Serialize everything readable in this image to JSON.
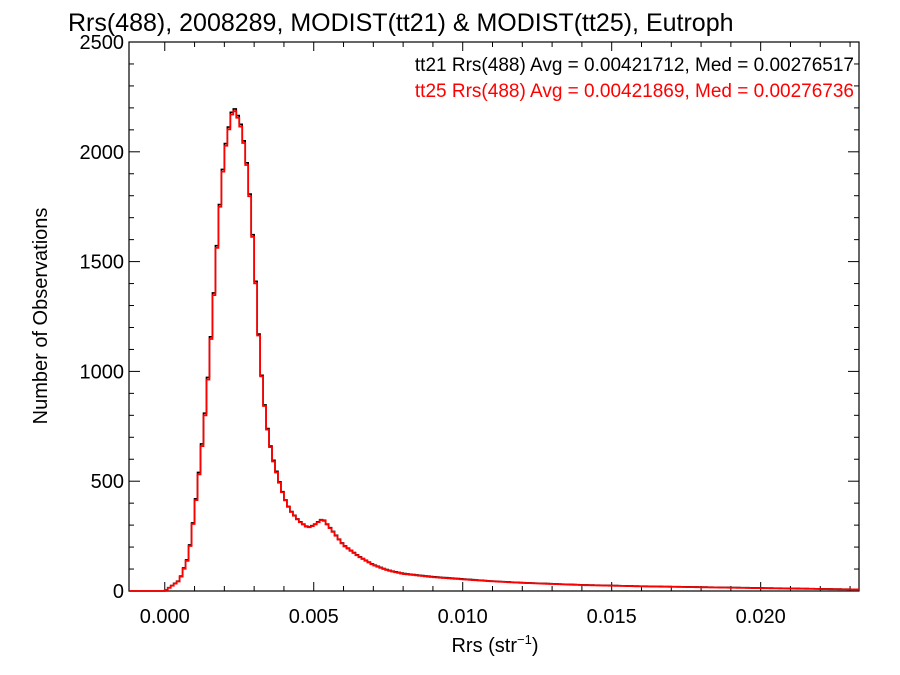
{
  "chart_data": {
    "type": "line",
    "title": "Rrs(488), 2008289, MODIST(tt21) & MODIST(tt25), Eutroph",
    "xlabel_base": "Rrs (str",
    "xlabel_sup": "−1",
    "xlabel_close": ")",
    "ylabel": "Number of Observations",
    "xlim": [
      -0.0012,
      0.0233
    ],
    "ylim": [
      0,
      2500
    ],
    "x_ticks": [
      0.0,
      0.005,
      0.01,
      0.015,
      0.02
    ],
    "x_tick_labels": [
      "0.000",
      "0.005",
      "0.010",
      "0.015",
      "0.020"
    ],
    "y_ticks": [
      0,
      500,
      1000,
      1500,
      2000,
      2500
    ],
    "y_tick_labels": [
      "0",
      "500",
      "1000",
      "1500",
      "2000",
      "2500"
    ],
    "grid": false,
    "legend_placement": "top-right",
    "series": [
      {
        "name": "tt21 Rrs(488) Avg = 0.00421712, Med = 0.00276517",
        "color": "#000000",
        "x": [
          0.0,
          0.0005,
          0.0008,
          0.001,
          0.0012,
          0.0014,
          0.0016,
          0.0018,
          0.002,
          0.0022,
          0.0023,
          0.0024,
          0.0025,
          0.0026,
          0.0028,
          0.003,
          0.0032,
          0.0034,
          0.0036,
          0.0038,
          0.004,
          0.0042,
          0.0045,
          0.0048,
          0.005,
          0.0053,
          0.0056,
          0.006,
          0.0065,
          0.007,
          0.0075,
          0.008,
          0.009,
          0.01,
          0.011,
          0.012,
          0.013,
          0.014,
          0.015,
          0.016,
          0.017,
          0.018,
          0.019,
          0.02,
          0.021,
          0.022,
          0.023
        ],
        "y": [
          0,
          50,
          160,
          360,
          600,
          880,
          1250,
          1680,
          2000,
          2150,
          2210,
          2180,
          2150,
          2100,
          1900,
          1530,
          1050,
          780,
          620,
          520,
          430,
          370,
          320,
          290,
          300,
          330,
          280,
          210,
          160,
          120,
          95,
          80,
          65,
          55,
          45,
          38,
          33,
          28,
          25,
          22,
          20,
          18,
          16,
          14,
          12,
          10,
          8
        ]
      },
      {
        "name": "tt25 Rrs(488) Avg = 0.00421869, Med = 0.00276736",
        "color": "#ff0000",
        "x": [
          0.0,
          0.0005,
          0.0008,
          0.001,
          0.0012,
          0.0014,
          0.0016,
          0.0018,
          0.002,
          0.0022,
          0.0023,
          0.0024,
          0.0025,
          0.0026,
          0.0028,
          0.003,
          0.0032,
          0.0034,
          0.0036,
          0.0038,
          0.004,
          0.0042,
          0.0045,
          0.0048,
          0.005,
          0.0053,
          0.0056,
          0.006,
          0.0065,
          0.007,
          0.0075,
          0.008,
          0.009,
          0.01,
          0.011,
          0.012,
          0.013,
          0.014,
          0.015,
          0.016,
          0.017,
          0.018,
          0.019,
          0.02,
          0.021,
          0.022,
          0.023
        ],
        "y": [
          0,
          48,
          155,
          355,
          590,
          870,
          1240,
          1670,
          1990,
          2140,
          2200,
          2170,
          2140,
          2090,
          1890,
          1520,
          1045,
          775,
          615,
          515,
          428,
          368,
          318,
          288,
          298,
          328,
          278,
          208,
          158,
          118,
          93,
          78,
          63,
          53,
          44,
          37,
          32,
          27,
          24,
          21,
          19,
          17,
          15,
          13,
          11,
          9,
          7
        ]
      }
    ]
  }
}
